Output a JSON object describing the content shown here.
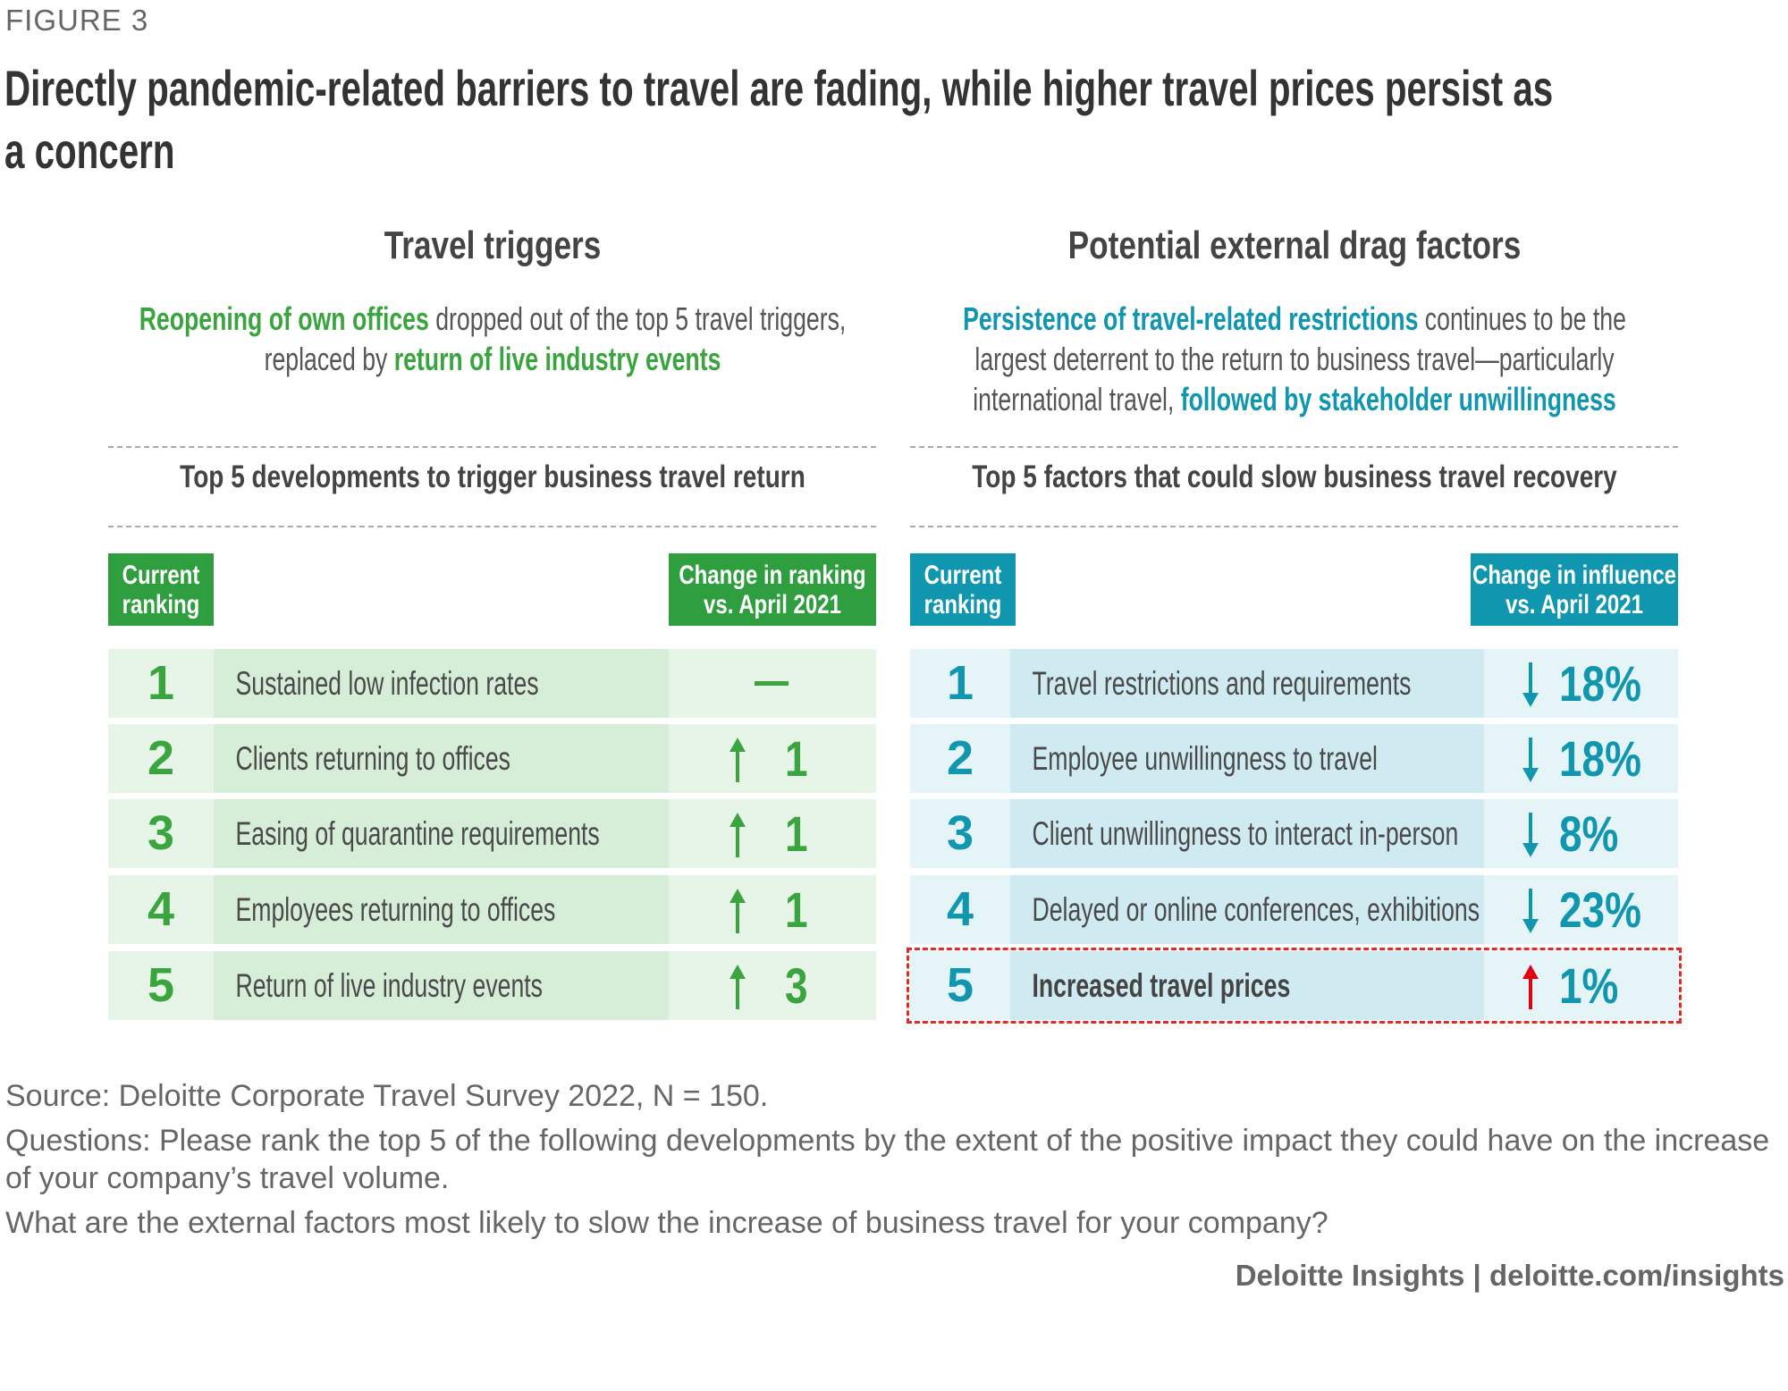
{
  "figure_label": "FIGURE 3",
  "title": "Directly pandemic-related barriers to travel are fading, while higher travel prices persist as a concern",
  "colors": {
    "green": "#2e9e3e",
    "green_light": "#e7f5e8",
    "green_mid": "#d6eed8",
    "teal": "#1196b0",
    "teal_light": "#e4f4f7",
    "teal_mid": "#cfeaf0",
    "highlight_border": "#e02b2b",
    "up_arrow_red": "#e3000f"
  },
  "left": {
    "heading": "Travel triggers",
    "subtitle": {
      "l1a": "Reopening of own offices",
      "l1b": " dropped out of the top 5 travel triggers,",
      "l2a": "replaced by ",
      "l2b": "return of live industry events"
    },
    "table_title": "Top 5 developments to trigger business travel return",
    "col_rank": "Current\nranking",
    "col_change": "Change in ranking\nvs. April 2021",
    "rows": [
      {
        "rank": "1",
        "label": "Sustained low infection rates",
        "change": "",
        "direction": "none",
        "symbol": "—"
      },
      {
        "rank": "2",
        "label": "Clients returning to offices",
        "change": "1",
        "direction": "up"
      },
      {
        "rank": "3",
        "label": "Easing of quarantine requirements",
        "change": "1",
        "direction": "up"
      },
      {
        "rank": "4",
        "label": "Employees returning to offices",
        "change": "1",
        "direction": "up"
      },
      {
        "rank": "5",
        "label": "Return of live industry events",
        "change": "3",
        "direction": "up"
      }
    ]
  },
  "right": {
    "heading": "Potential external drag factors",
    "subtitle": {
      "l1a": "Persistence of travel-related restrictions",
      "l1b": " continues to be the",
      "l2": "largest deterrent to the return to business travel—particularly",
      "l3a": "international travel, ",
      "l3b": "followed by stakeholder unwillingness"
    },
    "table_title": "Top 5 factors that could slow business travel recovery",
    "col_rank": "Current\nranking",
    "col_change": "Change in influence\nvs. April 2021",
    "rows": [
      {
        "rank": "1",
        "label": "Travel restrictions and requirements",
        "change": "18%",
        "direction": "down"
      },
      {
        "rank": "2",
        "label": "Employee unwillingness to travel",
        "change": "18%",
        "direction": "down"
      },
      {
        "rank": "3",
        "label": "Client unwillingness to interact in-person",
        "change": "8%",
        "direction": "down"
      },
      {
        "rank": "4",
        "label": "Delayed or online conferences, exhibitions",
        "change": "23%",
        "direction": "down"
      },
      {
        "rank": "5",
        "label": "Increased travel prices",
        "change": "1%",
        "direction": "up",
        "highlighted": true
      }
    ]
  },
  "notes": {
    "source": "Source: Deloitte Corporate Travel Survey 2022, N = 150.",
    "q1": "Questions: Please rank the top 5 of the following developments by the extent of the positive impact they could have on the increase of your company’s travel volume.",
    "q2": "What are the external factors most likely to slow the increase of business travel for your company?"
  },
  "credit": "Deloitte Insights | deloitte.com/insights"
}
